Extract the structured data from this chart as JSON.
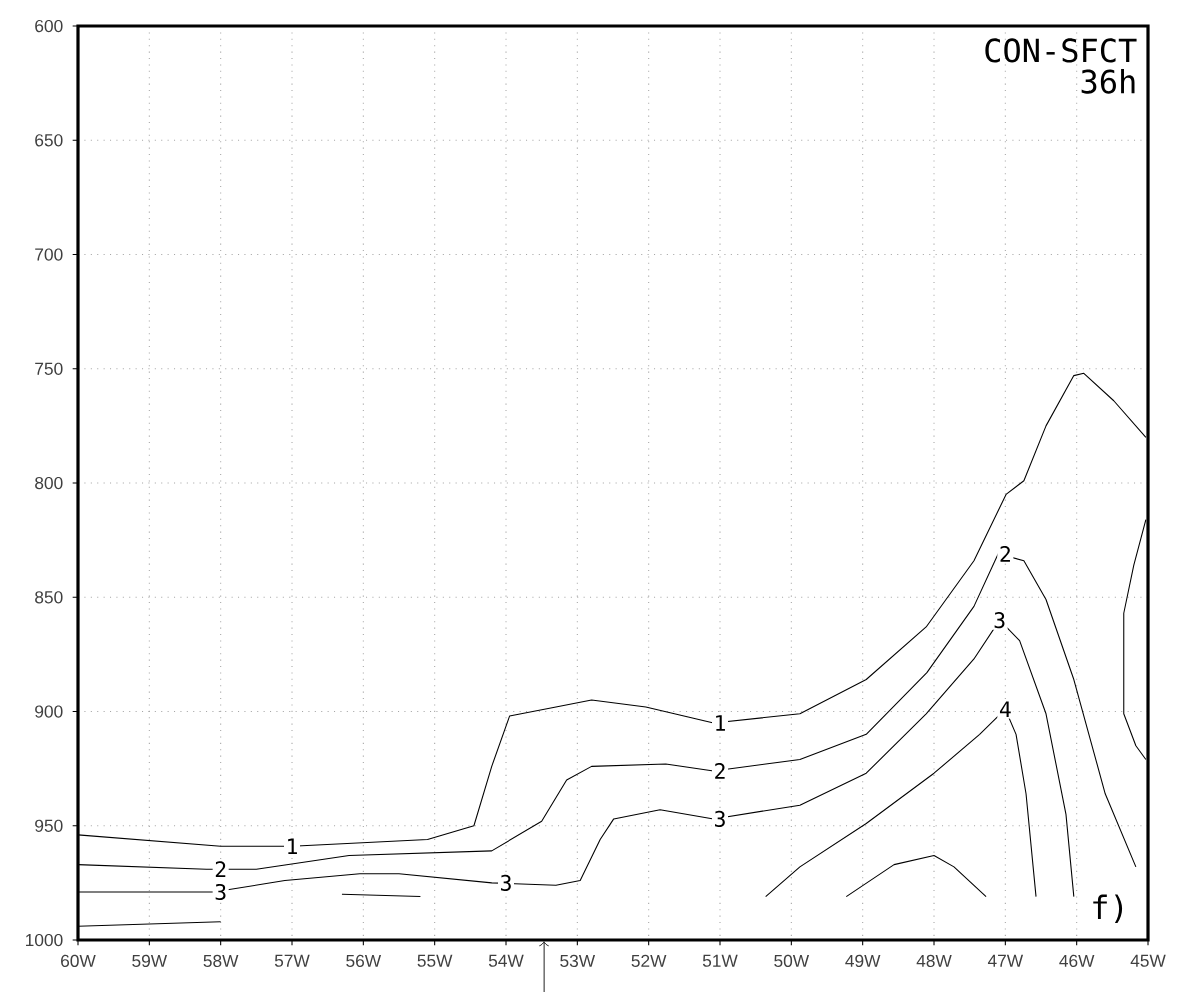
{
  "chart_data": {
    "type": "line",
    "title": "CON-SFCT",
    "subtitle": "36h",
    "xlim": [
      -60,
      -45
    ],
    "ylim": [
      1000,
      600
    ],
    "xticks": [
      {
        "value": -60,
        "label": "60W"
      },
      {
        "value": -59,
        "label": "59W"
      },
      {
        "value": -58,
        "label": "58W"
      },
      {
        "value": -57,
        "label": "57W"
      },
      {
        "value": -56,
        "label": "56W"
      },
      {
        "value": -55,
        "label": "55W"
      },
      {
        "value": -54,
        "label": "54W"
      },
      {
        "value": -53,
        "label": "53W"
      },
      {
        "value": -52,
        "label": "52W"
      },
      {
        "value": -51,
        "label": "51W"
      },
      {
        "value": -50,
        "label": "50W"
      },
      {
        "value": -49,
        "label": "49W"
      },
      {
        "value": -48,
        "label": "48W"
      },
      {
        "value": -47,
        "label": "47W"
      },
      {
        "value": -46,
        "label": "46W"
      },
      {
        "value": -45,
        "label": "45W"
      }
    ],
    "yticks": [
      600,
      650,
      700,
      750,
      800,
      850,
      900,
      950,
      1000
    ],
    "grid": true,
    "series": [
      {
        "color": "#000000",
        "x": [
          -60,
          -58,
          -57,
          -55.1,
          -54.45,
          -54.2,
          -53.95,
          -53.3,
          -52.8,
          -52.04,
          -51.09,
          -49.88,
          -48.95,
          -48.11,
          -47.44,
          -47.16,
          -46.99,
          -46.74,
          -46.43,
          -46.04,
          -45.9,
          -45.48,
          -45.03
        ],
        "values": [
          954,
          959,
          959,
          956,
          950,
          924,
          902,
          898,
          895,
          898,
          905,
          901,
          886,
          863,
          834,
          816,
          805,
          799,
          775,
          753,
          752,
          764,
          780
        ]
      },
      {
        "color": "#000000",
        "x": [
          -60,
          -58.2,
          -57.5,
          -56.2,
          -54.2,
          -53.5,
          -53.15,
          -52.8,
          -51.76,
          -51.09,
          -49.88,
          -48.95,
          -48.1,
          -47.44,
          -47.1,
          -46.74,
          -46.43,
          -46.04,
          -45.6,
          -45.17
        ],
        "values": [
          967,
          969,
          969,
          963,
          961,
          948,
          930,
          924,
          923,
          926,
          921,
          910,
          883,
          854,
          831,
          834,
          851,
          886,
          936,
          968
        ]
      },
      {
        "color": "#000000",
        "x": [
          -60,
          -58.1,
          -57.1,
          -56.05,
          -55.5,
          -54.2,
          -53.3,
          -52.96,
          -52.68,
          -52.49,
          -51.84,
          -51.09,
          -49.88,
          -48.95,
          -48.11,
          -47.44,
          -47.08,
          -46.8,
          -46.43,
          -46.15,
          -46.04
        ],
        "values": [
          979,
          979,
          974,
          971,
          971,
          975,
          976,
          974,
          956,
          947,
          943,
          947,
          941,
          927,
          901,
          877,
          860,
          869,
          901,
          945,
          981
        ]
      },
      {
        "color": "#000000",
        "x": [
          -50.36,
          -49.88,
          -48.95,
          -48.0,
          -47.36,
          -47.0,
          -46.85,
          -46.71,
          -46.57
        ],
        "values": [
          981,
          968,
          949,
          927,
          910,
          899,
          910,
          936,
          981
        ]
      },
      {
        "color": "#000000",
        "x": [
          -60,
          -58
        ],
        "values": [
          994,
          992
        ]
      },
      {
        "color": "#000000",
        "x": [
          -56.3,
          -55.2
        ],
        "values": [
          980,
          981
        ]
      },
      {
        "color": "#000000",
        "x": [
          -49.23,
          -48.56,
          -48.0,
          -47.72,
          -47.27
        ],
        "values": [
          981,
          967,
          963,
          968,
          981
        ]
      },
      {
        "color": "#000000",
        "x": [
          -45.03,
          -45.2,
          -45.34,
          -45.34,
          -45.17,
          -45.03
        ],
        "values": [
          816,
          836,
          857,
          901,
          915,
          921
        ]
      }
    ],
    "annotations": [
      {
        "text": "1",
        "x": -57,
        "y": 959
      },
      {
        "text": "1",
        "x": -51,
        "y": 905
      },
      {
        "text": "2",
        "x": -58,
        "y": 969
      },
      {
        "text": "2",
        "x": -51,
        "y": 926
      },
      {
        "text": "2",
        "x": -47,
        "y": 831
      },
      {
        "text": "3",
        "x": -58,
        "y": 979
      },
      {
        "text": "3",
        "x": -54,
        "y": 975
      },
      {
        "text": "3",
        "x": -51,
        "y": 947
      },
      {
        "text": "3",
        "x": -47.08,
        "y": 860
      },
      {
        "text": "4",
        "x": -47,
        "y": 899
      },
      "f)"
    ]
  }
}
